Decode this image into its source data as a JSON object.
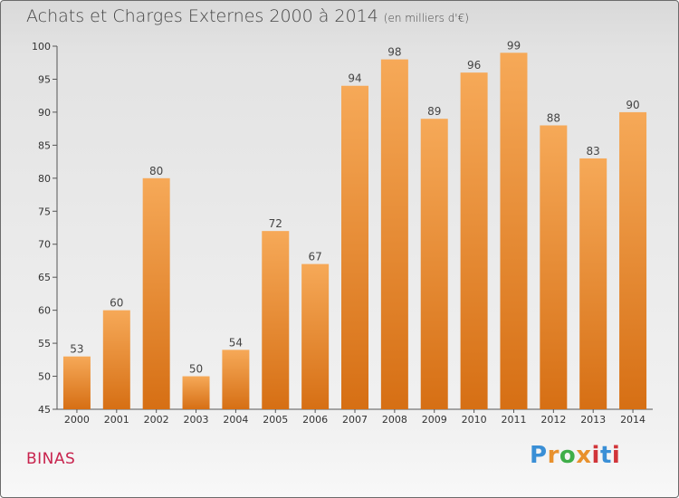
{
  "title": "Achats et Charges Externes 2000 à 2014",
  "unit": "(en milliers d'€)",
  "commune": "BINAS",
  "logo": {
    "letters": [
      "P",
      "r",
      "o",
      "x",
      "i",
      "t",
      "i"
    ],
    "colors": [
      "#3a8fd6",
      "#e8912d",
      "#3fae49",
      "#e8912d",
      "#d1353a",
      "#3a8fd6",
      "#d1353a"
    ]
  },
  "colors": {
    "bar_top": "#f6a958",
    "bar_bottom": "#d66f14",
    "title": "#444444",
    "commune": "#c8244e"
  },
  "chart_data": {
    "type": "bar",
    "title": "Achats et Charges Externes 2000 à 2014",
    "subtitle": "(en milliers d'€)",
    "xlabel": "",
    "ylabel": "",
    "categories": [
      "2000",
      "2001",
      "2002",
      "2003",
      "2004",
      "2005",
      "2006",
      "2007",
      "2008",
      "2009",
      "2010",
      "2011",
      "2012",
      "2013",
      "2014"
    ],
    "values": [
      53,
      60,
      80,
      50,
      54,
      72,
      67,
      94,
      98,
      89,
      96,
      99,
      88,
      83,
      90
    ],
    "ylim": [
      45,
      100
    ],
    "yticks": [
      45,
      50,
      55,
      60,
      65,
      70,
      75,
      80,
      85,
      90,
      95,
      100
    ],
    "grid": false
  }
}
